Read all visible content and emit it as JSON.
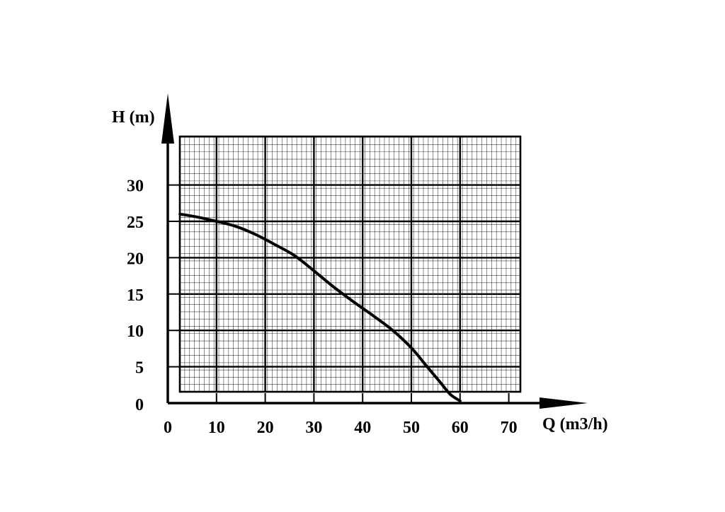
{
  "chart_data": {
    "type": "line",
    "title": "",
    "xlabel": "Q (m3/h)",
    "ylabel": "H (m)",
    "xlim": [
      0,
      70
    ],
    "ylim": [
      0,
      30
    ],
    "x_ticks": [
      "0",
      "10",
      "20",
      "30",
      "40",
      "50",
      "60",
      "70"
    ],
    "y_ticks": [
      "0",
      "5",
      "10",
      "15",
      "20",
      "25",
      "30"
    ],
    "grid": true,
    "legend": "none",
    "colors": {
      "line": "#000000",
      "grid": "#000000",
      "background": "#ffffff"
    },
    "series": [
      {
        "x": [
          2.5,
          6,
          10,
          14,
          18,
          22,
          26,
          30,
          34,
          38,
          42,
          46,
          50,
          53,
          56,
          58,
          60
        ],
        "y": [
          26.0,
          25.6,
          25.0,
          24.3,
          23.2,
          21.8,
          20.3,
          18.2,
          16.0,
          14.0,
          12.1,
          10.1,
          7.6,
          5.2,
          2.8,
          1.2,
          0.3
        ]
      }
    ]
  }
}
